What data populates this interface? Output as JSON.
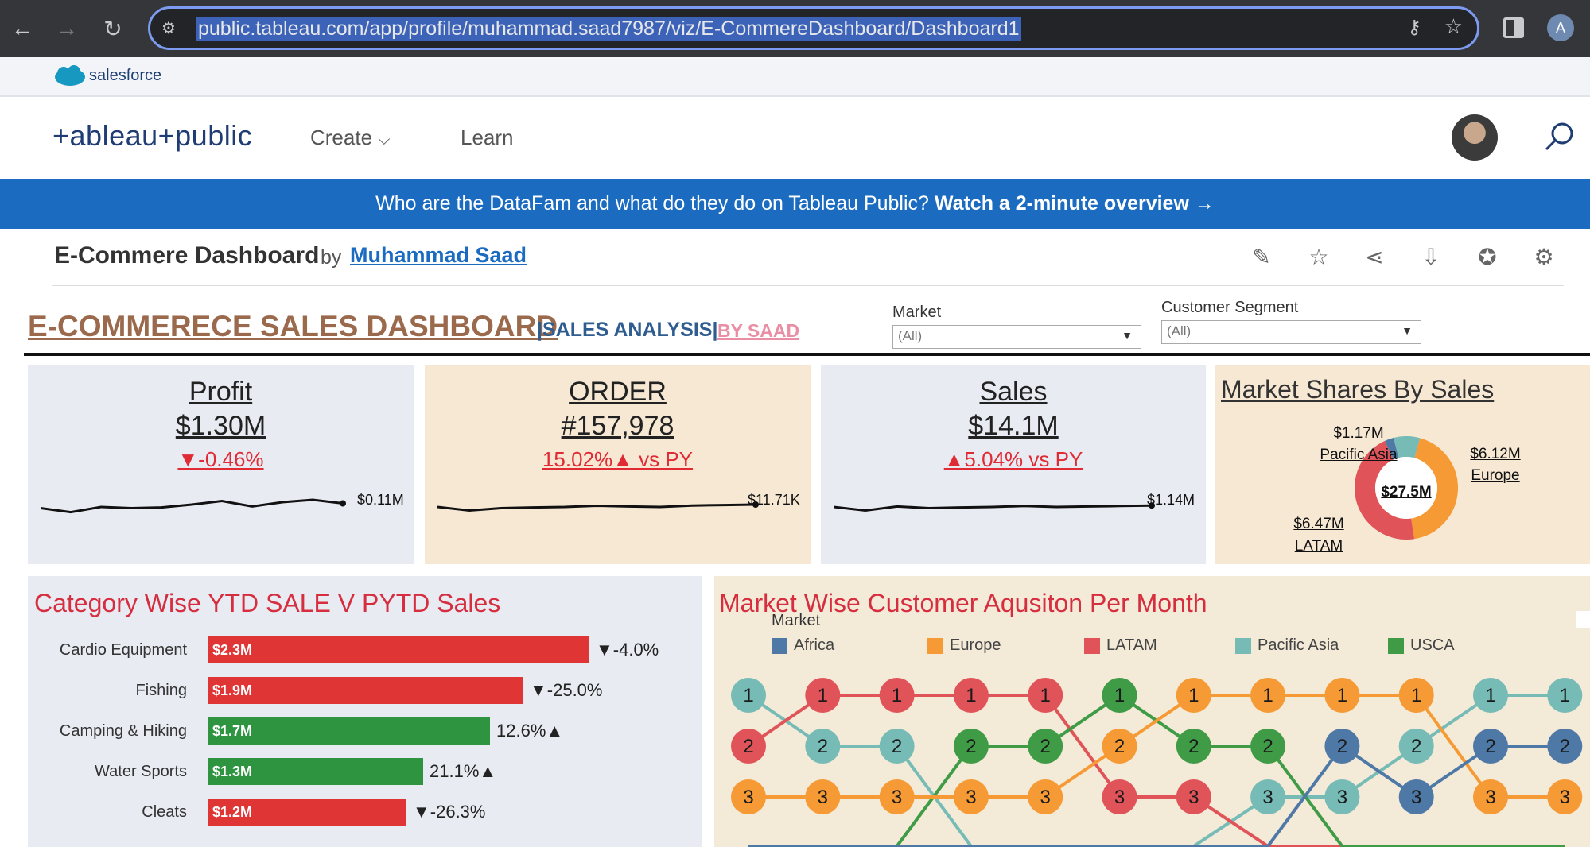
{
  "browser": {
    "url": "public.tableau.com/app/profile/muhammad.saad7987/viz/E-CommereDashboard/Dashboard1",
    "profile_initial": "A"
  },
  "salesforce": {
    "brand": "salesforce"
  },
  "header": {
    "logo": "+ableau+public",
    "nav": [
      {
        "label": "Create"
      },
      {
        "label": "Learn"
      }
    ]
  },
  "banner": {
    "text": "Who are the DataFam and what do they do on Tableau Public?",
    "link": "Watch a 2-minute overview →"
  },
  "viz": {
    "title": "E-Commere Dashboard",
    "by": "by",
    "author": "Muhammad Saad"
  },
  "dashboard": {
    "title": "E-COMMERECE SALES DASHBOARD",
    "subtitle": "|SALES ANALYSIS|",
    "by": "BY SAAD",
    "filters": [
      {
        "label": "Market",
        "value": "(All)"
      },
      {
        "label": "Customer Segment",
        "value": "(All)"
      }
    ],
    "kpis": [
      {
        "title": "Profit",
        "value": "$1.30M",
        "delta": "▼-0.46%",
        "spark_label": "$0.11M",
        "spark": [
          0.55,
          0.38,
          0.6,
          0.55,
          0.58,
          0.7,
          0.85,
          0.62,
          0.8,
          0.9,
          0.75
        ]
      },
      {
        "title": "ORDER",
        "value": "#157,978",
        "delta": "15.02%▲ vs PY",
        "spark_label": "$11.71K",
        "spark": [
          0.6,
          0.45,
          0.55,
          0.58,
          0.6,
          0.65,
          0.62,
          0.6,
          0.66,
          0.68,
          0.7
        ]
      },
      {
        "title": "Sales",
        "value": "$14.1M",
        "delta": "▲5.04% vs PY",
        "spark_label": "$1.14M",
        "spark": [
          0.6,
          0.45,
          0.62,
          0.55,
          0.58,
          0.6,
          0.64,
          0.6,
          0.62,
          0.64,
          0.66
        ]
      }
    ],
    "market_shares": {
      "title": "Market Shares By Sales",
      "center": "$27.5M",
      "slices": [
        {
          "label": "Pacific Asia",
          "value": "$1.17M",
          "color": "#76bbb6"
        },
        {
          "label": "Europe",
          "value": "$6.12M",
          "color": "#f59a34"
        },
        {
          "label": "LATAM",
          "value": "$6.47M",
          "color": "#e05459"
        },
        {
          "label": "Africa",
          "value": "",
          "color": "#4e79a7"
        }
      ]
    },
    "category": {
      "title": "Category Wise YTD SALE V PYTD Sales",
      "rows": [
        {
          "name": "Cardio Equipment",
          "value": "$2.3M",
          "pct": "▼-4.0%",
          "num": 2.3,
          "color": "#e03535"
        },
        {
          "name": "Fishing",
          "value": "$1.9M",
          "pct": "▼-25.0%",
          "num": 1.9,
          "color": "#e03535"
        },
        {
          "name": "Camping & Hiking",
          "value": "$1.7M",
          "pct": "12.6%▲",
          "num": 1.7,
          "color": "#2e9440"
        },
        {
          "name": "Water Sports",
          "value": "$1.3M",
          "pct": "21.1%▲",
          "num": 1.3,
          "color": "#2e9440"
        },
        {
          "name": "Cleats",
          "value": "$1.2M",
          "pct": "▼-26.3%",
          "num": 1.2,
          "color": "#e03535"
        }
      ]
    },
    "market_customer": {
      "title": "Market Wise Customer Aqusiton Per Month",
      "legend_title": "Market",
      "legend": [
        {
          "name": "Africa",
          "color": "#4e79a7"
        },
        {
          "name": "Europe",
          "color": "#f59a34"
        },
        {
          "name": "LATAM",
          "color": "#e05459"
        },
        {
          "name": "Pacific Asia",
          "color": "#76bbb6"
        },
        {
          "name": "USCA",
          "color": "#3f9b46"
        }
      ],
      "rows": [
        [
          "Pacific Asia",
          "LATAM",
          "LATAM",
          "LATAM",
          "LATAM",
          "USCA",
          "Europe",
          "Europe",
          "Europe",
          "Europe",
          "Pacific Asia",
          "Pacific Asia"
        ],
        [
          "LATAM",
          "Pacific Asia",
          "Pacific Asia",
          "USCA",
          "USCA",
          "Europe",
          "USCA",
          "USCA",
          "Africa",
          "Pacific Asia",
          "Africa",
          "Africa"
        ],
        [
          "Europe",
          "Europe",
          "Europe",
          "Europe",
          "Europe",
          "LATAM",
          "LATAM",
          "Pacific Asia",
          "Pacific Asia",
          "Africa",
          "Europe",
          "Europe"
        ]
      ]
    }
  }
}
